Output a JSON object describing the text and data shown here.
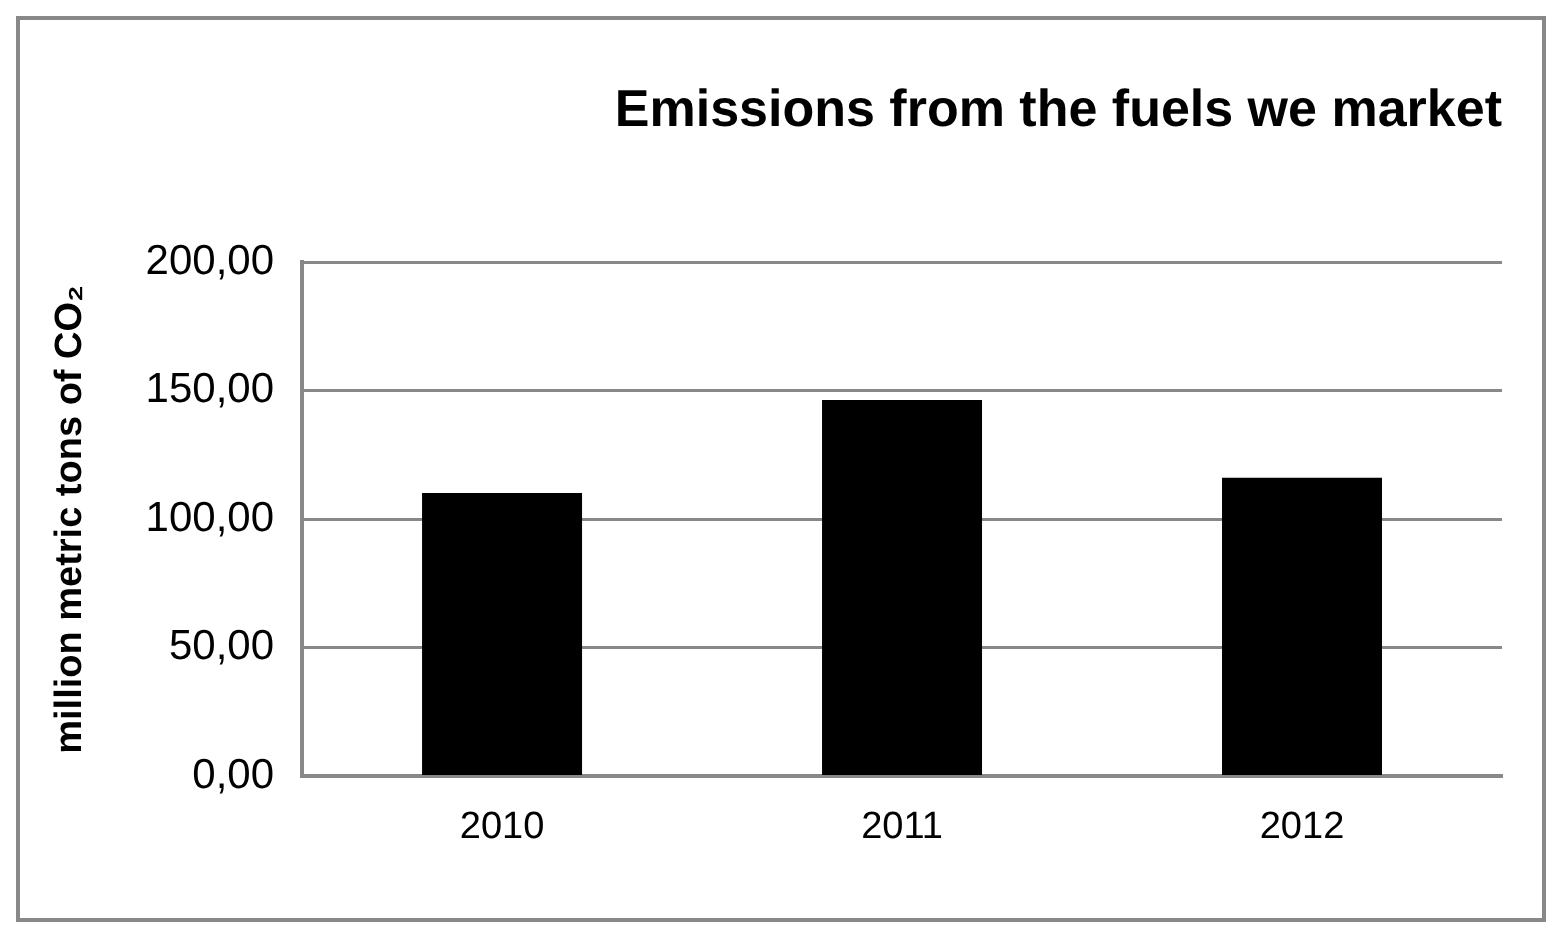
{
  "chart_data": {
    "type": "bar",
    "title": "Emissions from the fuels we market",
    "ylabel": "million metric tons of CO₂",
    "categories": [
      "2010",
      "2011",
      "2012"
    ],
    "values": [
      110.3,
      146.5,
      116.2
    ],
    "color": "#000000",
    "ylim": [
      0,
      200
    ],
    "yticks": [
      {
        "value": 0,
        "label": "0,00"
      },
      {
        "value": 50,
        "label": "50,00"
      },
      {
        "value": 100,
        "label": "100,00"
      },
      {
        "value": 150,
        "label": "150,00"
      },
      {
        "value": 200,
        "label": "200,00"
      }
    ],
    "grid": "y",
    "legend": false
  }
}
